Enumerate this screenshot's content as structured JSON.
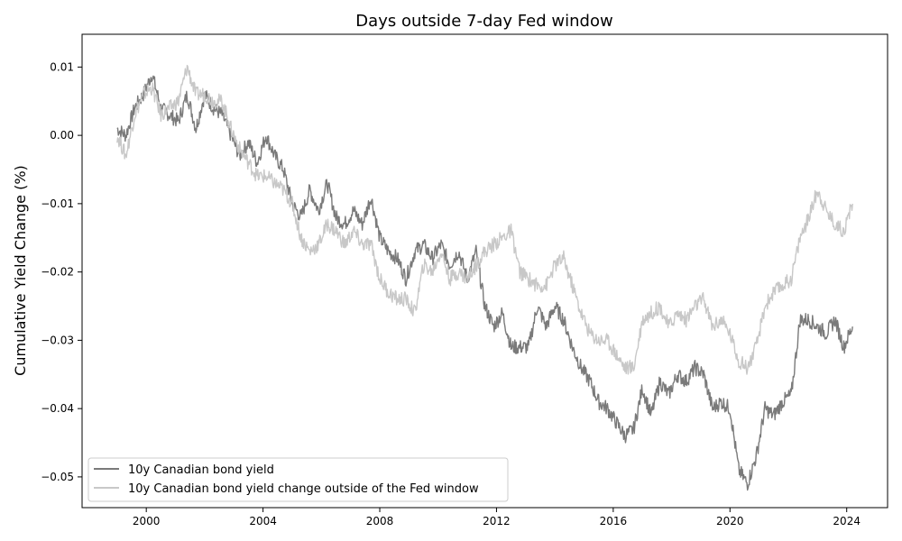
{
  "chart_data": {
    "type": "line",
    "title": "Days outside 7-day Fed window",
    "xlabel": "",
    "ylabel": "Cumulative Yield Change (%)",
    "xlim": [
      1997.8,
      2025.4
    ],
    "ylim": [
      -0.0545,
      0.0148
    ],
    "x_ticks": [
      2000,
      2004,
      2008,
      2012,
      2016,
      2020,
      2024
    ],
    "x_tick_labels": [
      "2000",
      "2004",
      "2008",
      "2012",
      "2016",
      "2020",
      "2024"
    ],
    "y_ticks": [
      0.01,
      0.0,
      -0.01,
      -0.02,
      -0.03,
      -0.04,
      -0.05
    ],
    "y_tick_labels": [
      "0.01",
      "0.00",
      "−0.01",
      "−0.02",
      "−0.03",
      "−0.04",
      "−0.05"
    ],
    "grid": false,
    "legend_position": "lower-left",
    "series": [
      {
        "name": "10y Canadian bond yield",
        "color": "#7a7a7a",
        "x": [
          1999.0,
          1999.3,
          1999.6,
          1999.9,
          2000.2,
          2000.5,
          2000.8,
          2001.1,
          2001.4,
          2001.7,
          2002.0,
          2002.3,
          2002.6,
          2002.9,
          2003.2,
          2003.5,
          2003.8,
          2004.1,
          2004.4,
          2004.7,
          2005.0,
          2005.3,
          2005.6,
          2005.9,
          2006.2,
          2006.5,
          2006.8,
          2007.1,
          2007.4,
          2007.7,
          2008.0,
          2008.3,
          2008.6,
          2008.9,
          2009.2,
          2009.5,
          2009.8,
          2010.1,
          2010.4,
          2010.7,
          2011.0,
          2011.3,
          2011.6,
          2011.9,
          2012.2,
          2012.5,
          2012.8,
          2013.1,
          2013.4,
          2013.7,
          2014.0,
          2014.3,
          2014.6,
          2014.9,
          2015.2,
          2015.5,
          2015.8,
          2016.1,
          2016.4,
          2016.7,
          2017.0,
          2017.3,
          2017.6,
          2017.9,
          2018.2,
          2018.5,
          2018.8,
          2019.1,
          2019.4,
          2019.7,
          2020.0,
          2020.3,
          2020.6,
          2020.9,
          2021.2,
          2021.5,
          2021.8,
          2022.1,
          2022.4,
          2022.7,
          2023.0,
          2023.3,
          2023.6,
          2023.9,
          2024.2
        ],
        "values": [
          0.001,
          0.0,
          0.004,
          0.006,
          0.009,
          0.004,
          0.003,
          0.002,
          0.006,
          0.001,
          0.006,
          0.004,
          0.003,
          0.0,
          -0.003,
          -0.001,
          -0.004,
          0.0,
          -0.003,
          -0.005,
          -0.01,
          -0.012,
          -0.008,
          -0.011,
          -0.007,
          -0.012,
          -0.013,
          -0.011,
          -0.013,
          -0.009,
          -0.015,
          -0.017,
          -0.018,
          -0.021,
          -0.017,
          -0.016,
          -0.018,
          -0.016,
          -0.019,
          -0.017,
          -0.021,
          -0.017,
          -0.025,
          -0.028,
          -0.026,
          -0.031,
          -0.031,
          -0.031,
          -0.025,
          -0.028,
          -0.025,
          -0.027,
          -0.031,
          -0.034,
          -0.036,
          -0.039,
          -0.04,
          -0.042,
          -0.044,
          -0.043,
          -0.037,
          -0.041,
          -0.036,
          -0.038,
          -0.035,
          -0.036,
          -0.034,
          -0.035,
          -0.04,
          -0.039,
          -0.04,
          -0.049,
          -0.051,
          -0.047,
          -0.04,
          -0.041,
          -0.039,
          -0.038,
          -0.027,
          -0.027,
          -0.028,
          -0.029,
          -0.027,
          -0.031,
          -0.028
        ]
      },
      {
        "name": "10y Canadian bond yield change outside of the Fed window",
        "color": "#c8c8c8",
        "x": [
          1999.0,
          1999.3,
          1999.6,
          1999.9,
          2000.2,
          2000.5,
          2000.8,
          2001.1,
          2001.4,
          2001.7,
          2002.0,
          2002.3,
          2002.6,
          2002.9,
          2003.2,
          2003.5,
          2003.8,
          2004.1,
          2004.4,
          2004.7,
          2005.0,
          2005.3,
          2005.6,
          2005.9,
          2006.2,
          2006.5,
          2006.8,
          2007.1,
          2007.4,
          2007.7,
          2008.0,
          2008.3,
          2008.6,
          2008.9,
          2009.2,
          2009.5,
          2009.8,
          2010.1,
          2010.4,
          2010.7,
          2011.0,
          2011.3,
          2011.6,
          2011.9,
          2012.2,
          2012.5,
          2012.8,
          2013.1,
          2013.4,
          2013.7,
          2014.0,
          2014.3,
          2014.6,
          2014.9,
          2015.2,
          2015.5,
          2015.8,
          2016.1,
          2016.4,
          2016.7,
          2017.0,
          2017.3,
          2017.6,
          2017.9,
          2018.2,
          2018.5,
          2018.8,
          2019.1,
          2019.4,
          2019.7,
          2020.0,
          2020.3,
          2020.6,
          2020.9,
          2021.2,
          2021.5,
          2021.8,
          2022.1,
          2022.4,
          2022.7,
          2023.0,
          2023.3,
          2023.6,
          2023.9,
          2024.2
        ],
        "values": [
          0.0,
          -0.003,
          0.003,
          0.006,
          0.007,
          0.003,
          0.004,
          0.005,
          0.01,
          0.006,
          0.006,
          0.005,
          0.005,
          0.001,
          -0.002,
          -0.004,
          -0.006,
          -0.006,
          -0.007,
          -0.008,
          -0.01,
          -0.015,
          -0.017,
          -0.016,
          -0.013,
          -0.014,
          -0.016,
          -0.014,
          -0.016,
          -0.016,
          -0.021,
          -0.023,
          -0.024,
          -0.024,
          -0.026,
          -0.019,
          -0.02,
          -0.017,
          -0.021,
          -0.02,
          -0.021,
          -0.019,
          -0.017,
          -0.016,
          -0.015,
          -0.014,
          -0.02,
          -0.021,
          -0.022,
          -0.022,
          -0.019,
          -0.018,
          -0.022,
          -0.026,
          -0.029,
          -0.03,
          -0.03,
          -0.032,
          -0.034,
          -0.034,
          -0.027,
          -0.026,
          -0.025,
          -0.028,
          -0.026,
          -0.027,
          -0.025,
          -0.024,
          -0.028,
          -0.027,
          -0.029,
          -0.033,
          -0.034,
          -0.031,
          -0.025,
          -0.023,
          -0.022,
          -0.021,
          -0.015,
          -0.012,
          -0.008,
          -0.011,
          -0.013,
          -0.014,
          -0.01
        ]
      }
    ]
  }
}
